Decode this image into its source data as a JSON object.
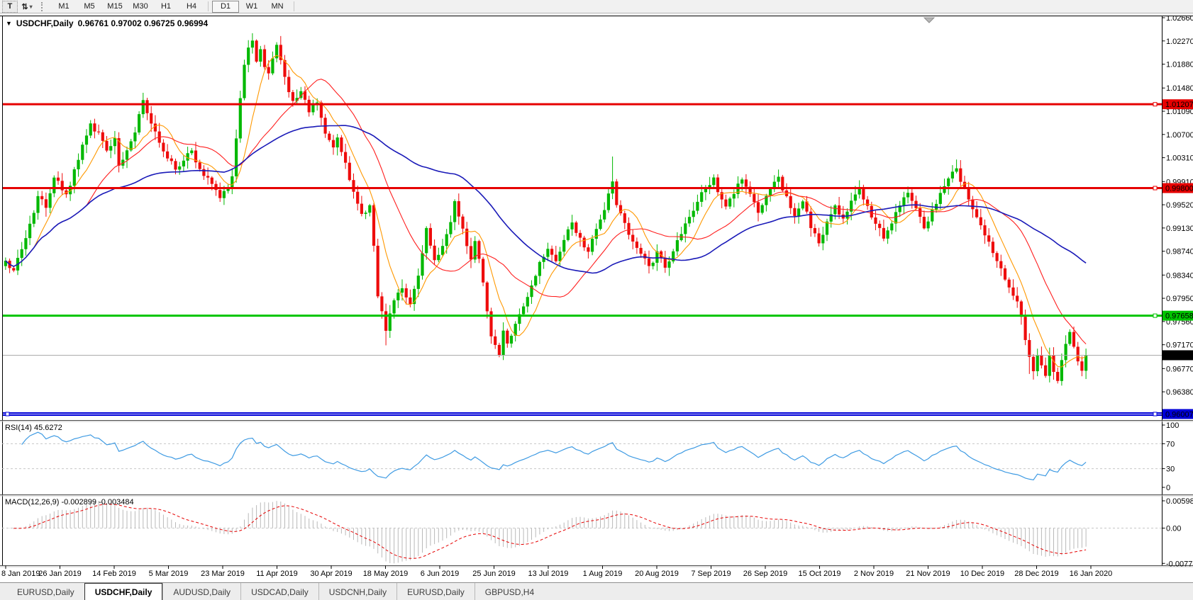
{
  "toolbar": {
    "tools": [
      {
        "name": "text-tool",
        "icon": "T"
      },
      {
        "name": "cycle-arrows-tool",
        "icon": "⇅",
        "caret": "▾"
      }
    ],
    "timeframes": [
      "M1",
      "M5",
      "M15",
      "M30",
      "H1",
      "H4",
      "D1",
      "W1",
      "MN"
    ],
    "active_timeframe": "D1"
  },
  "chart": {
    "symbol": "USDCHF,Daily",
    "ohlc": "0.96761 0.97002 0.96725 0.96994",
    "dropdown_icon": "▼"
  },
  "chart_data": {
    "type": "candlestick",
    "title": "USDCHF,Daily",
    "colors": {
      "up": "#00b800",
      "down": "#ee0c0c",
      "background": "#ffffff"
    },
    "x_labels": [
      "8 Jan 2019",
      "26 Jan 2019",
      "14 Feb 2019",
      "5 Mar 2019",
      "23 Mar 2019",
      "11 Apr 2019",
      "30 Apr 2019",
      "18 May 2019",
      "6 Jun 2019",
      "25 Jun 2019",
      "13 Jul 2019",
      "1 Aug 2019",
      "20 Aug 2019",
      "7 Sep 2019",
      "26 Sep 2019",
      "15 Oct 2019",
      "2 Nov 2019",
      "21 Nov 2019",
      "10 Dec 2019",
      "28 Dec 2019",
      "16 Jan 2020"
    ],
    "y_axis_ticks": [
      "1.02660",
      "1.02270",
      "1.01880",
      "1.01480",
      "1.01090",
      "1.00700",
      "1.00310",
      "0.99910",
      "0.99520",
      "0.99130",
      "0.98740",
      "0.98340",
      "0.97950",
      "0.97560",
      "0.97170",
      "0.96770",
      "0.96380"
    ],
    "last_price_label": "0.96994",
    "last_price_value": 0.96994,
    "hlines": [
      {
        "label": "1.01207",
        "price": 1.01207,
        "color": "#e60000",
        "width": 3,
        "text_color": "#fff"
      },
      {
        "label": "0.99800",
        "price": 0.998,
        "color": "#e60000",
        "width": 3,
        "text_color": "#fff"
      },
      {
        "label": "0.97658",
        "price": 0.97658,
        "color": "#00c400",
        "width": 3,
        "text_color": "#000"
      },
      {
        "label": "0.96007",
        "price": 0.96007,
        "color": "#0000d8",
        "width": 5,
        "text_color": "#fff",
        "white_center": true,
        "handle_left": true
      }
    ],
    "mas": [
      {
        "name": "ma-fast",
        "period": 8,
        "color": "#ff9800",
        "width": 1.1
      },
      {
        "name": "ma-mid",
        "period": 21,
        "color": "#ff1f1f",
        "width": 1.1
      },
      {
        "name": "ma-slow",
        "period": 55,
        "color": "#1a1ab8",
        "width": 1.6
      }
    ],
    "rsi": {
      "label": "RSI(14) 45.6272",
      "period": 14,
      "levels": [
        100,
        70,
        30,
        0
      ],
      "dashed_levels": [
        70,
        30
      ],
      "line_color": "#3f9be3"
    },
    "macd": {
      "label": "MACD(12,26,9) -0.002899 -0.003484",
      "axis": [
        "0.005986",
        "0.00",
        "-0.007737"
      ],
      "histogram_color": "#b9b9b9",
      "signal_color": "#e60000"
    },
    "candles": {
      "count": 268,
      "anchors": [
        [
          0,
          0.9858
        ],
        [
          2,
          0.984
        ],
        [
          5,
          0.9895
        ],
        [
          8,
          0.9968
        ],
        [
          10,
          0.9945
        ],
        [
          12,
          0.9998
        ],
        [
          15,
          0.997
        ],
        [
          18,
          1.0028
        ],
        [
          21,
          1.0088
        ],
        [
          23,
          1.0072
        ],
        [
          25,
          1.0042
        ],
        [
          27,
          1.0062
        ],
        [
          28,
          1.0018
        ],
        [
          30,
          1.0042
        ],
        [
          32,
          1.0075
        ],
        [
          34,
          1.0128
        ],
        [
          36,
          1.009
        ],
        [
          38,
          1.0058
        ],
        [
          40,
          1.003
        ],
        [
          42,
          1.001
        ],
        [
          44,
          1.0026
        ],
        [
          46,
          1.0042
        ],
        [
          49,
          1.0002
        ],
        [
          51,
          0.9985
        ],
        [
          53,
          0.9963
        ],
        [
          55,
          0.9982
        ],
        [
          56,
          1.0
        ],
        [
          57,
          1.0062
        ],
        [
          58,
          1.013
        ],
        [
          59,
          1.0185
        ],
        [
          60,
          1.0215
        ],
        [
          61,
          1.0226
        ],
        [
          62,
          1.0192
        ],
        [
          63,
          1.0212
        ],
        [
          64,
          1.0185
        ],
        [
          65,
          1.0172
        ],
        [
          66,
          1.0198
        ],
        [
          67,
          1.022
        ],
        [
          69,
          1.0168
        ],
        [
          71,
          1.0125
        ],
        [
          73,
          1.0142
        ],
        [
          75,
          1.0108
        ],
        [
          77,
          1.0122
        ],
        [
          79,
          1.0072
        ],
        [
          81,
          1.0048
        ],
        [
          82,
          1.0066
        ],
        [
          84,
          1.0022
        ],
        [
          86,
          0.9975
        ],
        [
          88,
          0.9938
        ],
        [
          90,
          0.995
        ],
        [
          91,
          0.9885
        ],
        [
          92,
          0.98
        ],
        [
          94,
          0.9742
        ],
        [
          96,
          0.9792
        ],
        [
          98,
          0.9812
        ],
        [
          100,
          0.9786
        ],
        [
          102,
          0.9832
        ],
        [
          104,
          0.9912
        ],
        [
          106,
          0.986
        ],
        [
          108,
          0.9884
        ],
        [
          110,
          0.9924
        ],
        [
          111,
          0.996
        ],
        [
          113,
          0.9912
        ],
        [
          115,
          0.9862
        ],
        [
          116,
          0.9892
        ],
        [
          118,
          0.9822
        ],
        [
          119,
          0.9775
        ],
        [
          120,
          0.973
        ],
        [
          122,
          0.97
        ],
        [
          123,
          0.9742
        ],
        [
          124,
          0.972
        ],
        [
          126,
          0.9752
        ],
        [
          128,
          0.9782
        ],
        [
          130,
          0.9818
        ],
        [
          132,
          0.9855
        ],
        [
          134,
          0.988
        ],
        [
          136,
          0.9858
        ],
        [
          138,
          0.9892
        ],
        [
          140,
          0.9922
        ],
        [
          142,
          0.9898
        ],
        [
          144,
          0.9872
        ],
        [
          146,
          0.9912
        ],
        [
          148,
          0.9945
        ],
        [
          150,
          0.9992
        ],
        [
          151,
          0.9952
        ],
        [
          153,
          0.992
        ],
        [
          155,
          0.989
        ],
        [
          157,
          0.9868
        ],
        [
          159,
          0.9848
        ],
        [
          161,
          0.9872
        ],
        [
          163,
          0.9845
        ],
        [
          165,
          0.9874
        ],
        [
          167,
          0.9904
        ],
        [
          169,
          0.9932
        ],
        [
          171,
          0.9958
        ],
        [
          173,
          0.9978
        ],
        [
          175,
          0.9996
        ],
        [
          176,
          0.9975
        ],
        [
          178,
          0.9948
        ],
        [
          180,
          0.9972
        ],
        [
          182,
          0.9996
        ],
        [
          184,
          0.997
        ],
        [
          186,
          0.994
        ],
        [
          188,
          0.9966
        ],
        [
          190,
          0.999
        ],
        [
          191,
          0.9998
        ],
        [
          193,
          0.9965
        ],
        [
          195,
          0.9935
        ],
        [
          197,
          0.9958
        ],
        [
          199,
          0.9912
        ],
        [
          201,
          0.9888
        ],
        [
          203,
          0.9922
        ],
        [
          205,
          0.9952
        ],
        [
          207,
          0.9928
        ],
        [
          209,
          0.9958
        ],
        [
          211,
          0.9978
        ],
        [
          213,
          0.995
        ],
        [
          215,
          0.9922
        ],
        [
          217,
          0.9895
        ],
        [
          219,
          0.9922
        ],
        [
          221,
          0.9952
        ],
        [
          223,
          0.9974
        ],
        [
          225,
          0.9945
        ],
        [
          227,
          0.9912
        ],
        [
          229,
          0.9944
        ],
        [
          231,
          0.997
        ],
        [
          233,
          0.9996
        ],
        [
          235,
          1.0014
        ],
        [
          236,
          0.9992
        ],
        [
          238,
          0.9962
        ],
        [
          240,
          0.993
        ],
        [
          242,
          0.99
        ],
        [
          244,
          0.9872
        ],
        [
          246,
          0.9845
        ],
        [
          248,
          0.9815
        ],
        [
          250,
          0.9788
        ],
        [
          251,
          0.9762
        ],
        [
          252,
          0.9725
        ],
        [
          253,
          0.9695
        ],
        [
          254,
          0.9672
        ],
        [
          255,
          0.97
        ],
        [
          256,
          0.9682
        ],
        [
          257,
          0.9665
        ],
        [
          258,
          0.9698
        ],
        [
          259,
          0.9672
        ],
        [
          260,
          0.9655
        ],
        [
          261,
          0.969
        ],
        [
          262,
          0.9718
        ],
        [
          263,
          0.974
        ],
        [
          264,
          0.9712
        ],
        [
          265,
          0.9688
        ],
        [
          266,
          0.9672
        ],
        [
          267,
          0.9699
        ]
      ],
      "specials": {
        "34": {
          "h": 1.014
        },
        "61": {
          "h": 1.024
        },
        "94": {
          "l": 0.9716
        },
        "122": {
          "l": 0.9696
        },
        "150": {
          "h": 1.0033
        },
        "253": {
          "l": 0.9668
        },
        "260": {
          "l": 0.9652
        }
      }
    }
  },
  "tabs": {
    "items": [
      "EURUSD,Daily",
      "USDCHF,Daily",
      "AUDUSD,Daily",
      "USDCAD,Daily",
      "USDCNH,Daily",
      "EURUSD,Daily",
      "GBPUSD,H4"
    ],
    "active_index": 1
  }
}
